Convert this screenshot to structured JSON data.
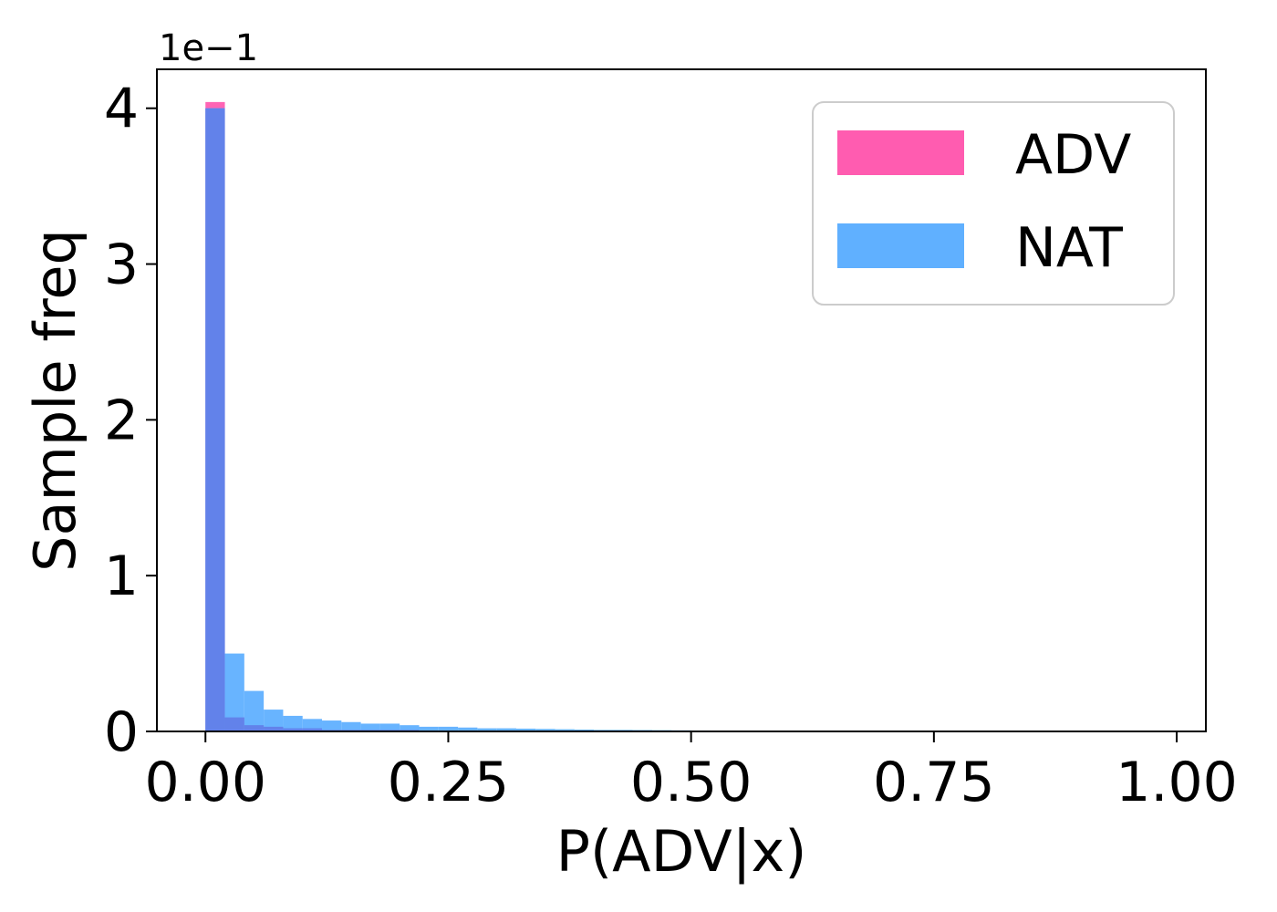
{
  "chart_data": {
    "type": "histogram",
    "xlabel": "P(ADV|x)",
    "ylabel": "Sample freq",
    "y_offset_text": "1e−1",
    "xlim": [
      -0.05,
      1.03
    ],
    "ylim": [
      0,
      4.25
    ],
    "x_ticks": [
      0.0,
      0.25,
      0.5,
      0.75,
      1.0
    ],
    "x_tick_labels": [
      "0.00",
      "0.25",
      "0.50",
      "0.75",
      "1.00"
    ],
    "y_ticks": [
      0,
      1,
      2,
      3,
      4
    ],
    "y_tick_labels": [
      "0",
      "1",
      "2",
      "3",
      "4"
    ],
    "bin_edges": [
      0.0,
      0.02,
      0.04,
      0.06,
      0.08,
      0.1,
      0.12,
      0.14,
      0.16,
      0.18,
      0.2,
      0.22,
      0.24,
      0.26,
      0.28,
      0.3,
      0.32,
      0.34,
      0.36,
      0.38,
      0.4,
      0.42,
      0.44,
      0.46,
      0.48,
      0.5,
      0.52,
      0.54,
      0.56
    ],
    "series": [
      {
        "name": "ADV",
        "color": "#ff5cb0",
        "values": [
          4.04,
          0.09,
          0.04,
          0.03,
          0.02,
          0.02,
          0.01,
          0.01,
          0.01,
          0.01,
          0.01,
          0.005,
          0.005,
          0.005,
          0.003,
          0.003,
          0.002,
          0.002,
          0.002,
          0.001,
          0.001,
          0.001,
          0.001,
          0.001,
          0.001,
          0.0,
          0.0,
          0.0
        ]
      },
      {
        "name": "NAT",
        "color": "#60b0ff",
        "values": [
          4.0,
          0.5,
          0.26,
          0.14,
          0.1,
          0.08,
          0.07,
          0.06,
          0.05,
          0.05,
          0.04,
          0.03,
          0.03,
          0.025,
          0.02,
          0.02,
          0.018,
          0.016,
          0.014,
          0.012,
          0.01,
          0.01,
          0.009,
          0.008,
          0.007,
          0.006,
          0.005,
          0.004
        ]
      }
    ],
    "legend": {
      "placement": "top-right",
      "entries": [
        "ADV",
        "NAT"
      ]
    }
  }
}
